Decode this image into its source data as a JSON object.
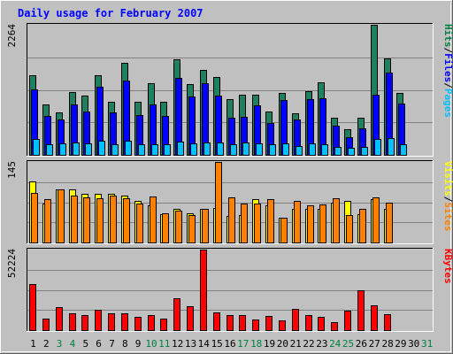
{
  "chart_data": {
    "type": "bar",
    "title": "Daily usage for February 2007",
    "x": [
      "1",
      "2",
      "3",
      "4",
      "5",
      "6",
      "7",
      "8",
      "9",
      "10",
      "11",
      "12",
      "13",
      "14",
      "15",
      "16",
      "17",
      "18",
      "19",
      "20",
      "21",
      "22",
      "23",
      "24",
      "25",
      "26",
      "27",
      "28",
      "29",
      "30",
      "31"
    ],
    "weekend_days": [
      "3",
      "4",
      "10",
      "11",
      "17",
      "18",
      "24",
      "25",
      "31"
    ],
    "panels": [
      {
        "id": "hits",
        "ymax_label": "2264",
        "ylim": [
          0,
          2264
        ],
        "legend": [
          {
            "text": "Pages",
            "color": "#00c0ff"
          },
          {
            "text": "Files",
            "color": "#0000ff"
          },
          {
            "text": "Hits",
            "color": "#008040"
          }
        ],
        "series": [
          {
            "name": "Hits",
            "color": "#1f8060",
            "values": [
              1380,
              880,
              740,
              1090,
              1030,
              1390,
              930,
              1600,
              930,
              1250,
              930,
              1660,
              1230,
              1480,
              1360,
              970,
              1040,
              1040,
              750,
              1080,
              720,
              1110,
              1260,
              640,
              440,
              640,
              2264,
              1680,
              1080,
              null,
              null
            ]
          },
          {
            "name": "Files",
            "color": "#0000ff",
            "values": [
              1140,
              680,
              610,
              880,
              760,
              1190,
              740,
              1290,
              700,
              880,
              680,
              1340,
              1020,
              1250,
              1030,
              650,
              660,
              870,
              550,
              950,
              610,
              970,
              980,
              510,
              310,
              460,
              1050,
              1430,
              890,
              null,
              null
            ]
          },
          {
            "name": "Pages",
            "color": "#00c0ff",
            "values": [
              280,
              180,
              200,
              210,
              200,
              240,
              190,
              240,
              180,
              190,
              180,
              230,
              200,
              220,
              210,
              180,
              210,
              200,
              190,
              200,
              160,
              200,
              180,
              140,
              130,
              140,
              270,
              290,
              180,
              null,
              null
            ]
          }
        ]
      },
      {
        "id": "visits",
        "ymax_label": "145",
        "ylim": [
          0,
          145
        ],
        "legend": [
          {
            "text": "Sites",
            "color": "#ff8000"
          },
          {
            "text": "Visits",
            "color": "#ffff00"
          }
        ],
        "series": [
          {
            "name": "Visits",
            "color": "#ffff00",
            "values": [
              110,
              70,
              95,
              96,
              88,
              88,
              87,
              84,
              75,
              67,
              51,
              61,
              53,
              60,
              62,
              48,
              50,
              78,
              67,
              45,
              60,
              60,
              60,
              72,
              75,
              51,
              78,
              60,
              null,
              null,
              null
            ]
          },
          {
            "name": "Sites",
            "color": "#ff8000",
            "values": [
              90,
              78,
              95,
              85,
              82,
              80,
              85,
              80,
              70,
              83,
              53,
              58,
              50,
              60,
              145,
              82,
              70,
              70,
              78,
              45,
              75,
              67,
              68,
              80,
              50,
              60,
              82,
              72,
              null,
              null,
              null
            ]
          }
        ]
      },
      {
        "id": "kbytes",
        "ymax_label": "52224",
        "ylim": [
          0,
          52224
        ],
        "legend": [
          {
            "text": "KBytes",
            "color": "#ff0000"
          }
        ],
        "series": [
          {
            "name": "KBytes",
            "color": "#ff0000",
            "values": [
              30000,
              7500,
              15000,
              11000,
              9500,
              13000,
              11000,
              11000,
              8500,
              9500,
              7500,
              20500,
              15500,
              52224,
              11500,
              9500,
              9500,
              7000,
              9000,
              6500,
              14000,
              9500,
              8500,
              5000,
              12500,
              26000,
              16000,
              10500,
              null,
              null,
              null
            ]
          }
        ]
      }
    ]
  }
}
